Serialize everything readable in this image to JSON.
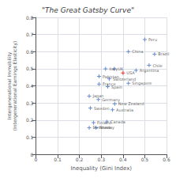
{
  "chart_data": {
    "type": "scatter",
    "title": "\"The Great Gatsby Curve\"",
    "xlabel": "Inequality (Gini Index)",
    "ylabel": "Intergenerational Immobility\n(Intergenerational Earnings Elasticity)",
    "labels": [
      "Peru",
      "China",
      "Brazil",
      "Chile",
      "Italy",
      "UK",
      "USA",
      "Argentina",
      "Pakistan",
      "Switzerland",
      "Singapore",
      "France",
      "Spain",
      "Japan",
      "Germany",
      "New Zealand",
      "Sweden",
      "Australia",
      "Finland",
      "Canada",
      "Denmark",
      "Norway"
    ],
    "x": [
      0.5,
      0.425,
      0.545,
      0.52,
      0.32,
      0.36,
      0.4,
      0.46,
      0.29,
      0.337,
      0.425,
      0.29,
      0.33,
      0.245,
      0.287,
      0.362,
      0.25,
      0.352,
      0.265,
      0.326,
      0.245,
      0.276
    ],
    "values": [
      0.67,
      0.6,
      0.585,
      0.52,
      0.5,
      0.5,
      0.475,
      0.49,
      0.455,
      0.44,
      0.415,
      0.41,
      0.395,
      0.34,
      0.32,
      0.295,
      0.27,
      0.26,
      0.185,
      0.19,
      0.155,
      0.155
    ],
    "colors": [
      "#4472C4",
      "#4472C4",
      "#4472C4",
      "#4472C4",
      "#4472C4",
      "#4472C4",
      "#FF0000",
      "#4472C4",
      "#4472C4",
      "#4472C4",
      "#4472C4",
      "#4472C4",
      "#4472C4",
      "#4472C4",
      "#4472C4",
      "#4472C4",
      "#4472C4",
      "#4472C4",
      "#4472C4",
      "#4472C4",
      "#4472C4",
      "#4472C4"
    ],
    "marker": "plus",
    "xlim": [
      0,
      0.6
    ],
    "xticks": [
      0,
      0.1,
      0.2,
      0.3,
      0.4,
      0.5,
      0.6
    ],
    "ylim": [
      0,
      0.8
    ],
    "yticks": [
      0,
      0.1,
      0.2,
      0.3,
      0.4,
      0.5,
      0.6,
      0.7,
      0.8
    ],
    "grid": true
  }
}
